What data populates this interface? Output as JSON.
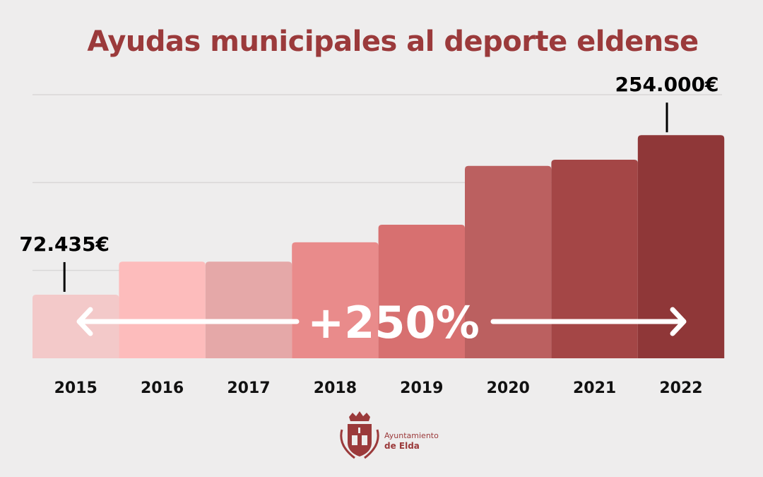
{
  "chart_data": {
    "type": "bar",
    "title": "Ayudas municipales al deporte eldense",
    "categories": [
      "2015",
      "2016",
      "2017",
      "2018",
      "2019",
      "2020",
      "2021",
      "2022"
    ],
    "values": [
      72435,
      110000,
      110000,
      132000,
      152000,
      219000,
      226000,
      254000
    ],
    "colors": [
      "#f3c9c9",
      "#fdbcbc",
      "#e5a8a8",
      "#e98b8b",
      "#d77070",
      "#bb6060",
      "#a44646",
      "#8f3738"
    ],
    "ylim": [
      0,
      300000
    ],
    "gridlines": [
      100000,
      200000,
      300000
    ],
    "grid": true,
    "annotations": [
      {
        "category": "2015",
        "label": "72.435€"
      },
      {
        "category": "2022",
        "label": "254.000€"
      }
    ],
    "growth_label": "+250%"
  },
  "logo": {
    "line1": "Ayuntamiento",
    "line2": "de Elda",
    "color": "#9b3a3b"
  }
}
